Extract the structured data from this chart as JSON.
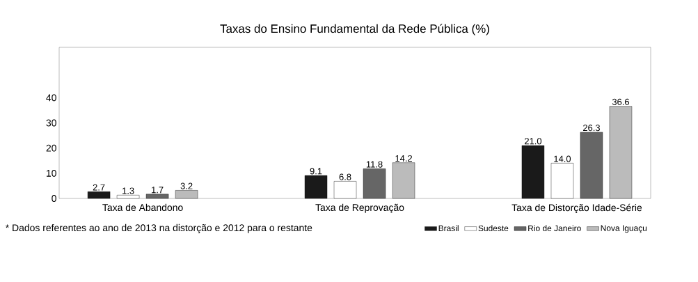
{
  "chart_data": {
    "type": "bar",
    "title": "Taxas do Ensino Fundamental da Rede Pública (%)",
    "categories": [
      "Taxa de Abandono",
      "Taxa de Reprovação",
      "Taxa de Distorção Idade-Série"
    ],
    "series": [
      {
        "name": "Brasil",
        "color": "#1a1a1a",
        "values": [
          2.7,
          9.1,
          21.0
        ],
        "value_labels": [
          "2.7",
          "9.1",
          "21.0"
        ]
      },
      {
        "name": "Sudeste",
        "color": "#ffffff",
        "values": [
          1.3,
          6.8,
          14.0
        ],
        "value_labels": [
          "1.3",
          "6.8",
          "14.0"
        ]
      },
      {
        "name": "Rio de Janeiro",
        "color": "#666666",
        "values": [
          1.7,
          11.8,
          26.3
        ],
        "value_labels": [
          "1.7",
          "11.8",
          "26.3"
        ]
      },
      {
        "name": "Nova Iguaçu",
        "color": "#bbbbbb",
        "values": [
          3.2,
          14.2,
          36.6
        ],
        "value_labels": [
          "3.2",
          "14.2",
          "36.6"
        ]
      }
    ],
    "ylim": [
      0,
      60
    ],
    "yticks": [
      0,
      10,
      20,
      30,
      40
    ],
    "legend": "bottom right",
    "grid": false,
    "annotations": [
      "* Dados referentes ao ano de 2013 na distorção e 2012 para o restante"
    ]
  }
}
